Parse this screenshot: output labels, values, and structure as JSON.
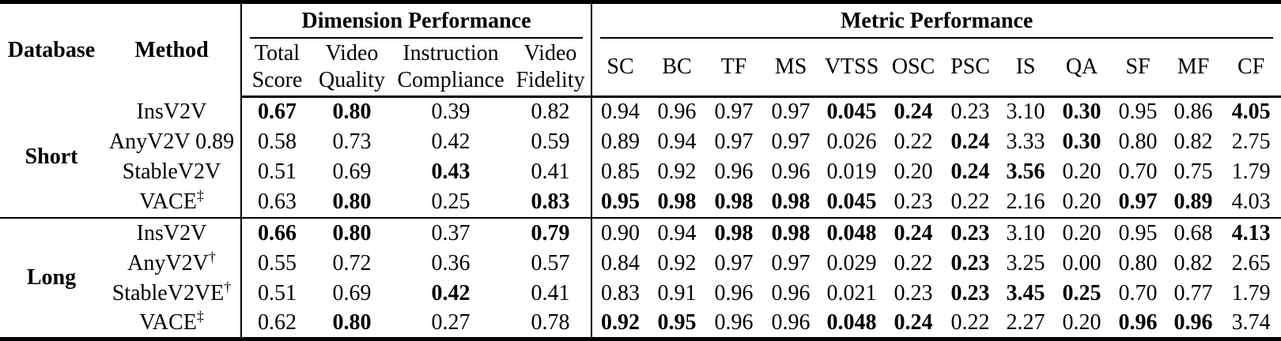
{
  "colors": {
    "text": "#000000",
    "background": "#ffffff",
    "rule": "#000000"
  },
  "table": {
    "left_headers": [
      "Database",
      "Method"
    ],
    "groups": [
      {
        "label": "Dimension Performance"
      },
      {
        "label": "Metric Performance"
      }
    ],
    "dim_columns": [
      {
        "line1": "Total",
        "line2": "Score"
      },
      {
        "line1": "Video",
        "line2": "Quality"
      },
      {
        "line1": "Instruction",
        "line2": "Compliance"
      },
      {
        "line1": "Video",
        "line2": "Fidelity"
      }
    ],
    "metric_columns": [
      "SC",
      "BC",
      "TF",
      "MS",
      "VTSS",
      "OSC",
      "PSC",
      "IS",
      "QA",
      "SF",
      "MF",
      "CF"
    ],
    "sections": [
      {
        "database": "Short",
        "rows": [
          {
            "method": "InsV2V",
            "sup": "",
            "values": [
              {
                "v": "0.67",
                "b": 1
              },
              {
                "v": "0.80",
                "b": 1
              },
              {
                "v": "0.39",
                "b": 0
              },
              {
                "v": "0.82",
                "b": 0
              },
              {
                "v": "0.94",
                "b": 0
              },
              {
                "v": "0.96",
                "b": 0
              },
              {
                "v": "0.97",
                "b": 0
              },
              {
                "v": "0.97",
                "b": 0
              },
              {
                "v": "0.045",
                "b": 1
              },
              {
                "v": "0.24",
                "b": 1
              },
              {
                "v": "0.23",
                "b": 0
              },
              {
                "v": "3.10",
                "b": 0
              },
              {
                "v": "0.30",
                "b": 1
              },
              {
                "v": "0.95",
                "b": 0
              },
              {
                "v": "0.86",
                "b": 0
              },
              {
                "v": "4.05",
                "b": 1
              }
            ]
          },
          {
            "method": "AnyV2V 0.89",
            "sup": "",
            "values": [
              {
                "v": "0.58",
                "b": 0
              },
              {
                "v": "0.73",
                "b": 0
              },
              {
                "v": "0.42",
                "b": 0
              },
              {
                "v": "0.59",
                "b": 0
              },
              {
                "v": "0.89",
                "b": 0
              },
              {
                "v": "0.94",
                "b": 0
              },
              {
                "v": "0.97",
                "b": 0
              },
              {
                "v": "0.97",
                "b": 0
              },
              {
                "v": "0.026",
                "b": 0
              },
              {
                "v": "0.22",
                "b": 0
              },
              {
                "v": "0.24",
                "b": 1
              },
              {
                "v": "3.33",
                "b": 0
              },
              {
                "v": "0.30",
                "b": 1
              },
              {
                "v": "0.80",
                "b": 0
              },
              {
                "v": "0.82",
                "b": 0
              },
              {
                "v": "2.75",
                "b": 0
              }
            ]
          },
          {
            "method": "StableV2V",
            "sup": "",
            "values": [
              {
                "v": "0.51",
                "b": 0
              },
              {
                "v": "0.69",
                "b": 0
              },
              {
                "v": "0.43",
                "b": 1
              },
              {
                "v": "0.41",
                "b": 0
              },
              {
                "v": "0.85",
                "b": 0
              },
              {
                "v": "0.92",
                "b": 0
              },
              {
                "v": "0.96",
                "b": 0
              },
              {
                "v": "0.96",
                "b": 0
              },
              {
                "v": "0.019",
                "b": 0
              },
              {
                "v": "0.20",
                "b": 0
              },
              {
                "v": "0.24",
                "b": 1
              },
              {
                "v": "3.56",
                "b": 1
              },
              {
                "v": "0.20",
                "b": 0
              },
              {
                "v": "0.70",
                "b": 0
              },
              {
                "v": "0.75",
                "b": 0
              },
              {
                "v": "1.79",
                "b": 0
              }
            ]
          },
          {
            "method": "VACE",
            "sup": "‡",
            "values": [
              {
                "v": "0.63",
                "b": 0
              },
              {
                "v": "0.80",
                "b": 1
              },
              {
                "v": "0.25",
                "b": 0
              },
              {
                "v": "0.83",
                "b": 1
              },
              {
                "v": "0.95",
                "b": 1
              },
              {
                "v": "0.98",
                "b": 1
              },
              {
                "v": "0.98",
                "b": 1
              },
              {
                "v": "0.98",
                "b": 1
              },
              {
                "v": "0.045",
                "b": 1
              },
              {
                "v": "0.23",
                "b": 0
              },
              {
                "v": "0.22",
                "b": 0
              },
              {
                "v": "2.16",
                "b": 0
              },
              {
                "v": "0.20",
                "b": 0
              },
              {
                "v": "0.97",
                "b": 1
              },
              {
                "v": "0.89",
                "b": 1
              },
              {
                "v": "4.03",
                "b": 0
              }
            ]
          }
        ]
      },
      {
        "database": "Long",
        "rows": [
          {
            "method": "InsV2V",
            "sup": "",
            "values": [
              {
                "v": "0.66",
                "b": 1
              },
              {
                "v": "0.80",
                "b": 1
              },
              {
                "v": "0.37",
                "b": 0
              },
              {
                "v": "0.79",
                "b": 1
              },
              {
                "v": "0.90",
                "b": 0
              },
              {
                "v": "0.94",
                "b": 0
              },
              {
                "v": "0.98",
                "b": 1
              },
              {
                "v": "0.98",
                "b": 1
              },
              {
                "v": "0.048",
                "b": 1
              },
              {
                "v": "0.24",
                "b": 1
              },
              {
                "v": "0.23",
                "b": 1
              },
              {
                "v": "3.10",
                "b": 0
              },
              {
                "v": "0.20",
                "b": 0
              },
              {
                "v": "0.95",
                "b": 0
              },
              {
                "v": "0.68",
                "b": 0
              },
              {
                "v": "4.13",
                "b": 1
              }
            ]
          },
          {
            "method": "AnyV2V",
            "sup": "†",
            "values": [
              {
                "v": "0.55",
                "b": 0
              },
              {
                "v": "0.72",
                "b": 0
              },
              {
                "v": "0.36",
                "b": 0
              },
              {
                "v": "0.57",
                "b": 0
              },
              {
                "v": "0.84",
                "b": 0
              },
              {
                "v": "0.92",
                "b": 0
              },
              {
                "v": "0.97",
                "b": 0
              },
              {
                "v": "0.97",
                "b": 0
              },
              {
                "v": "0.029",
                "b": 0
              },
              {
                "v": "0.22",
                "b": 0
              },
              {
                "v": "0.23",
                "b": 1
              },
              {
                "v": "3.25",
                "b": 0
              },
              {
                "v": "0.00",
                "b": 0
              },
              {
                "v": "0.80",
                "b": 0
              },
              {
                "v": "0.82",
                "b": 0
              },
              {
                "v": "2.65",
                "b": 0
              }
            ]
          },
          {
            "method": "StableV2VE",
            "sup": "†",
            "values": [
              {
                "v": "0.51",
                "b": 0
              },
              {
                "v": "0.69",
                "b": 0
              },
              {
                "v": "0.42",
                "b": 1
              },
              {
                "v": "0.41",
                "b": 0
              },
              {
                "v": "0.83",
                "b": 0
              },
              {
                "v": "0.91",
                "b": 0
              },
              {
                "v": "0.96",
                "b": 0
              },
              {
                "v": "0.96",
                "b": 0
              },
              {
                "v": "0.021",
                "b": 0
              },
              {
                "v": "0.23",
                "b": 0
              },
              {
                "v": "0.23",
                "b": 1
              },
              {
                "v": "3.45",
                "b": 1
              },
              {
                "v": "0.25",
                "b": 1
              },
              {
                "v": "0.70",
                "b": 0
              },
              {
                "v": "0.77",
                "b": 0
              },
              {
                "v": "1.79",
                "b": 0
              }
            ]
          },
          {
            "method": "VACE",
            "sup": "‡",
            "values": [
              {
                "v": "0.62",
                "b": 0
              },
              {
                "v": "0.80",
                "b": 1
              },
              {
                "v": "0.27",
                "b": 0
              },
              {
                "v": "0.78",
                "b": 0
              },
              {
                "v": "0.92",
                "b": 1
              },
              {
                "v": "0.95",
                "b": 1
              },
              {
                "v": "0.96",
                "b": 0
              },
              {
                "v": "0.96",
                "b": 0
              },
              {
                "v": "0.048",
                "b": 1
              },
              {
                "v": "0.24",
                "b": 1
              },
              {
                "v": "0.22",
                "b": 0
              },
              {
                "v": "2.27",
                "b": 0
              },
              {
                "v": "0.20",
                "b": 0
              },
              {
                "v": "0.96",
                "b": 1
              },
              {
                "v": "0.96",
                "b": 1
              },
              {
                "v": "3.74",
                "b": 0
              }
            ]
          }
        ]
      }
    ]
  }
}
